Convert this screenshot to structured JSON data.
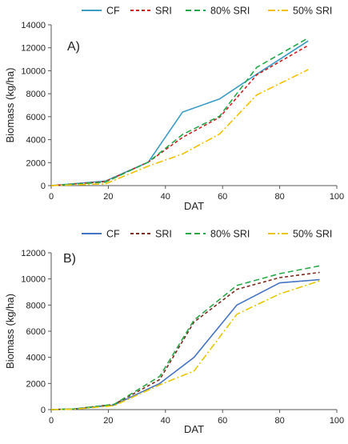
{
  "chart_data": [
    {
      "type": "line",
      "panel_label": "A)",
      "xlabel": "DAT",
      "ylabel": "Biomass (kg/ha)",
      "xlim": [
        0,
        100
      ],
      "ylim": [
        0,
        14000
      ],
      "x_ticks": [
        "0",
        "20",
        "40",
        "60",
        "80",
        "100"
      ],
      "y_ticks": [
        "0",
        "2000",
        "4000",
        "6000",
        "8000",
        "10000",
        "12000",
        "14000"
      ],
      "grid": false,
      "legend_position": "top",
      "series": [
        {
          "name": "CF",
          "color": "#3b9cc4",
          "dash": "solid",
          "x": [
            0,
            19,
            34,
            46,
            59,
            72,
            90
          ],
          "y": [
            0,
            400,
            2050,
            6400,
            7550,
            9700,
            12600
          ]
        },
        {
          "name": "SRI",
          "color": "#cc1f1f",
          "dash": "dash",
          "x": [
            0,
            19,
            34,
            46,
            59,
            72,
            90
          ],
          "y": [
            0,
            350,
            2050,
            4200,
            5950,
            9650,
            12200
          ]
        },
        {
          "name": "80% SRI",
          "color": "#22a84a",
          "dash": "longdash",
          "x": [
            0,
            19,
            34,
            46,
            59,
            72,
            90
          ],
          "y": [
            0,
            300,
            2050,
            4450,
            6050,
            10300,
            12850
          ]
        },
        {
          "name": "50% SRI",
          "color": "#f2c100",
          "dash": "dashdot",
          "x": [
            0,
            19,
            34,
            46,
            59,
            72,
            90
          ],
          "y": [
            0,
            150,
            1700,
            2750,
            4500,
            7900,
            10100
          ]
        }
      ]
    },
    {
      "type": "line",
      "panel_label": "B)",
      "xlabel": "DAT",
      "ylabel": "Biomass (kg/ha)",
      "xlim": [
        0,
        100
      ],
      "ylim": [
        0,
        12000
      ],
      "x_ticks": [
        "0",
        "20",
        "40",
        "60",
        "80",
        "100"
      ],
      "y_ticks": [
        "0",
        "2000",
        "4000",
        "6000",
        "8000",
        "10000",
        "12000"
      ],
      "grid": false,
      "legend_position": "top",
      "series": [
        {
          "name": "CF",
          "color": "#4472c4",
          "dash": "solid",
          "x": [
            0,
            8,
            22,
            38,
            50,
            65,
            80,
            94
          ],
          "y": [
            0,
            50,
            350,
            2000,
            4000,
            8000,
            9700,
            9950
          ]
        },
        {
          "name": "SRI",
          "color": "#7b2c1e",
          "dash": "dash",
          "x": [
            0,
            8,
            22,
            38,
            50,
            65,
            80,
            94
          ],
          "y": [
            0,
            50,
            400,
            2300,
            6700,
            9200,
            10100,
            10500
          ]
        },
        {
          "name": "80% SRI",
          "color": "#2aa84a",
          "dash": "longdash",
          "x": [
            0,
            8,
            22,
            38,
            50,
            65,
            80,
            94
          ],
          "y": [
            0,
            50,
            400,
            2550,
            6850,
            9500,
            10400,
            11000
          ]
        },
        {
          "name": "50% SRI",
          "color": "#e6c700",
          "dash": "dashdot",
          "x": [
            0,
            8,
            22,
            38,
            50,
            65,
            80,
            94
          ],
          "y": [
            0,
            30,
            300,
            1900,
            2950,
            7300,
            8850,
            9850
          ]
        }
      ]
    }
  ]
}
